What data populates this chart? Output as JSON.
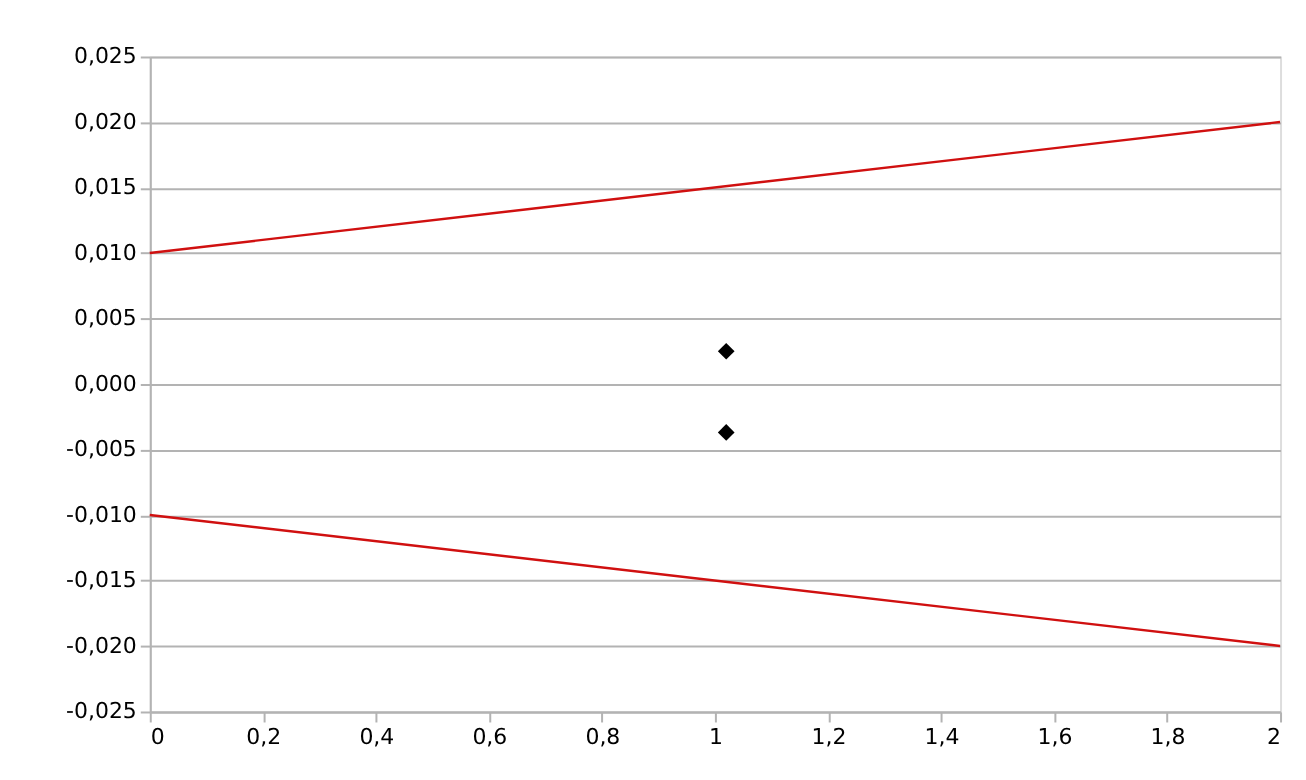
{
  "chart_data": {
    "type": "scatter",
    "series": [
      {
        "type": "line",
        "color": "#d01010",
        "x": [
          0,
          2
        ],
        "values": [
          0.01,
          0.02
        ]
      },
      {
        "type": "line",
        "color": "#d01010",
        "x": [
          0,
          2
        ],
        "values": [
          -0.01,
          -0.02
        ]
      },
      {
        "type": "scatter",
        "color": "#000000",
        "marker": "diamond",
        "x": [
          1.02,
          1.02
        ],
        "values": [
          0.0025,
          -0.0037
        ]
      }
    ],
    "xlim": [
      0,
      2
    ],
    "xticks": [
      0,
      {
        "value": 0.2,
        "label": "0,2"
      },
      {
        "value": 0.4,
        "label": "0,4"
      },
      {
        "value": 0.6,
        "label": "0,6"
      },
      {
        "value": 0.8,
        "label": "0,8"
      },
      1,
      {
        "value": 1.2,
        "label": "1,2"
      },
      {
        "value": 1.4,
        "label": "1,4"
      },
      {
        "value": 1.6,
        "label": "1,6"
      },
      {
        "value": 1.8,
        "label": "1,8"
      },
      2
    ],
    "ylim": [
      -0.025,
      0.025
    ],
    "yticks": [
      {
        "value": -0.025,
        "label": "-0,025"
      },
      {
        "value": -0.02,
        "label": "-0,020"
      },
      {
        "value": -0.015,
        "label": "-0,015"
      },
      {
        "value": -0.01,
        "label": "-0,010"
      },
      {
        "value": -0.005,
        "label": "-0,005"
      },
      {
        "value": 0,
        "label": "0,000"
      },
      {
        "value": 0.005,
        "label": "0,005"
      },
      {
        "value": 0.01,
        "label": "0,010"
      },
      {
        "value": 0.015,
        "label": "0,015"
      },
      {
        "value": 0.02,
        "label": "0,020"
      },
      {
        "value": 0.025,
        "label": "0,025"
      }
    ],
    "grid": "y",
    "legend": false
  }
}
